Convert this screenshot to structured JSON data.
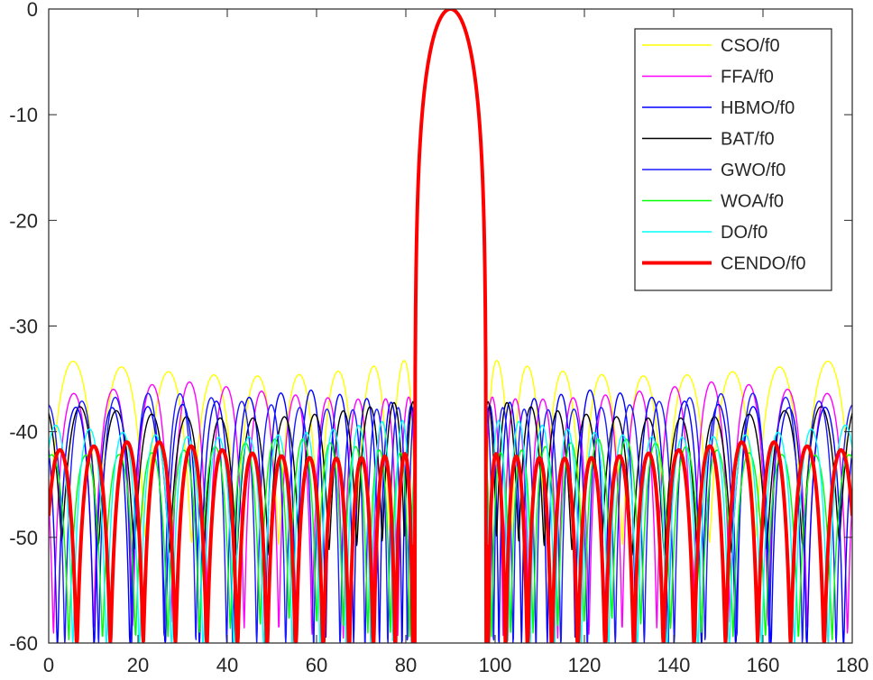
{
  "chart_data": {
    "type": "line",
    "title": "",
    "xlabel": "",
    "ylabel": "",
    "xlim": [
      0,
      180
    ],
    "ylim": [
      -60,
      0
    ],
    "xticks": [
      0,
      20,
      40,
      60,
      80,
      100,
      120,
      140,
      160,
      180
    ],
    "yticks": [
      0,
      -10,
      -20,
      -30,
      -40,
      -50,
      -60
    ],
    "xtick_labels": [
      "0",
      "20",
      "40",
      "60",
      "80",
      "100",
      "120",
      "140",
      "160",
      "180"
    ],
    "ytick_labels": [
      "0",
      "-10",
      "-20",
      "-30",
      "-40",
      "-50",
      "-60"
    ],
    "grid": false,
    "legend_position": "top-right",
    "mainlobe": {
      "center": 90,
      "halfwidth": 8,
      "peak": 0
    },
    "series": [
      {
        "name": "CSO/f0",
        "color": "#ffff00",
        "line_width": "thin",
        "sll": -33,
        "nulls_per_side": 9,
        "null_depth": -49
      },
      {
        "name": "FFA/f0",
        "color": "#ff00ff",
        "line_width": "thin",
        "sll": -35.2,
        "nulls_per_side": 11,
        "null_depth": -58
      },
      {
        "name": "HBMO/f0",
        "color": "#0000ff",
        "line_width": "thin",
        "sll": -36,
        "nulls_per_side": 12,
        "null_depth": -60
      },
      {
        "name": "BAT/f0",
        "color": "#000000",
        "line_width": "thin",
        "sll": -37,
        "nulls_per_side": 12,
        "null_depth": -50
      },
      {
        "name": "GWO/f0",
        "color": "#1a1aff",
        "line_width": "thin",
        "sll": -36.2,
        "nulls_per_side": 13,
        "null_depth": -60
      },
      {
        "name": "WOA/f0",
        "color": "#00ff00",
        "line_width": "thin",
        "sll": -40.5,
        "nulls_per_side": 13,
        "null_depth": -58
      },
      {
        "name": "DO/f0",
        "color": "#00ffff",
        "line_width": "thin",
        "sll": -38.8,
        "nulls_per_side": 13,
        "null_depth": -60
      },
      {
        "name": "CENDO/f0",
        "color": "#ff0000",
        "line_width": "thick",
        "sll": -40.8,
        "nulls_per_side": 13,
        "null_depth": -60
      }
    ]
  }
}
